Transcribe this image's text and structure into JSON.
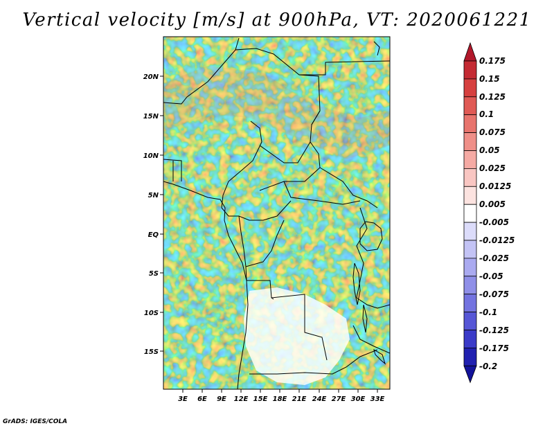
{
  "title": "Vertical velocity [m/s] at 900hPa, VT: 2020061221",
  "credit": "GrADS: IGES/COLA",
  "axes": {
    "lat_labels": [
      "20N",
      "15N",
      "10N",
      "5N",
      "EQ",
      "5S",
      "10S",
      "15S"
    ],
    "lon_labels": [
      "3E",
      "6E",
      "9E",
      "12E",
      "15E",
      "18E",
      "21E",
      "24E",
      "27E",
      "30E",
      "33E"
    ]
  },
  "colorbar": {
    "labels": [
      "0.175",
      "0.15",
      "0.125",
      "0.1",
      "0.075",
      "0.05",
      "0.025",
      "0.0125",
      "0.005",
      "-0.005",
      "-0.0125",
      "-0.025",
      "-0.05",
      "-0.075",
      "-0.1",
      "-0.125",
      "-0.175",
      "-0.2"
    ],
    "colors": [
      "#b2182b",
      "#c42a33",
      "#d6403f",
      "#e05a55",
      "#e8746d",
      "#ef8f88",
      "#f5aaa4",
      "#f9c6c2",
      "#fce3e0",
      "#ffffff",
      "#dcdcfa",
      "#c3c3f5",
      "#aaaaf0",
      "#8f8fe8",
      "#7373e0",
      "#5656d6",
      "#3a3ac8",
      "#2020b0",
      "#12129a"
    ]
  }
}
